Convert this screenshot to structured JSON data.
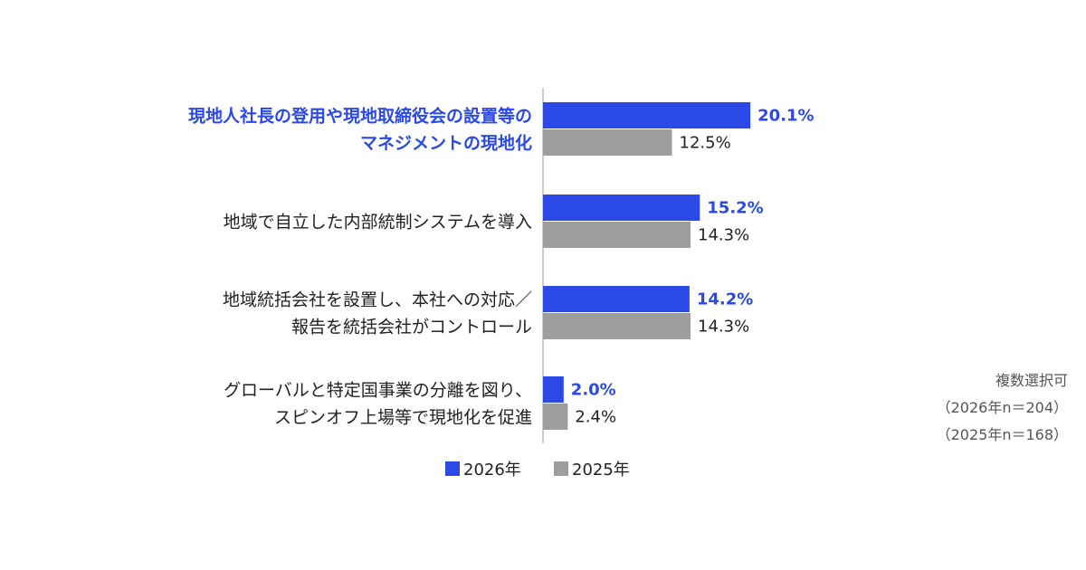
{
  "chart_data": {
    "type": "bar",
    "orientation": "horizontal",
    "categories": [
      [
        "現地人社長の登用や現地取締役会の設置等の",
        "マネジメントの現地化"
      ],
      [
        "地域で自立した内部統制システムを導入"
      ],
      [
        "地域統括会社を設置し、本社への対応／",
        "報告を統括会社がコントロール"
      ],
      [
        "グローバルと特定国事業の分離を図り、",
        "スピンオフ上場等で現地化を促進"
      ]
    ],
    "highlight_category": 0,
    "series": [
      {
        "name": "2026年",
        "values": [
          20.1,
          15.2,
          14.2,
          2.0
        ],
        "labels": [
          "20.1%",
          "15.2%",
          "14.2%",
          "2.0%"
        ],
        "color": "#2a49e6"
      },
      {
        "name": "2025年",
        "values": [
          12.5,
          14.3,
          14.3,
          2.4
        ],
        "labels": [
          "12.5%",
          "14.3%",
          "14.3%",
          "2.4%"
        ],
        "color": "#9e9e9e"
      }
    ],
    "unit": "%",
    "xlim": [
      0,
      25
    ],
    "grid": false,
    "legend_position": "bottom"
  },
  "note": {
    "title": "複数選択可",
    "lines": [
      "（2026年n＝204）",
      "（2025年n＝168）"
    ]
  },
  "colors": {
    "highlight_text": "#2a49e6",
    "axis": "#bbbbbb"
  }
}
